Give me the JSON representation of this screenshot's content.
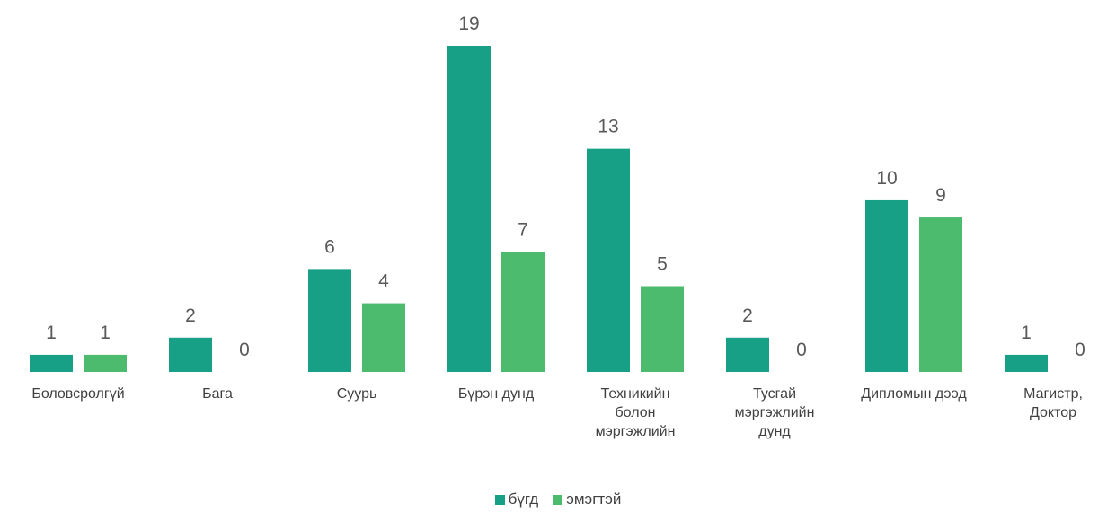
{
  "chart_data": {
    "type": "bar",
    "categories": [
      "Боловсролгүй",
      "Бага",
      "Суурь",
      "Бүрэн дунд",
      "Техникийн болон мэргэжлийн",
      "Тусгай мэргэжлийн дунд",
      "Дипломын дээд",
      "Магистр, Доктор"
    ],
    "series": [
      {
        "name": "бүгд",
        "color": "#17a085",
        "values": [
          1,
          2,
          6,
          19,
          13,
          2,
          10,
          1
        ]
      },
      {
        "name": "эмэгтэй",
        "color": "#4dbb6e",
        "values": [
          1,
          0,
          4,
          7,
          5,
          0,
          9,
          0
        ]
      }
    ],
    "legend": "bottom"
  }
}
